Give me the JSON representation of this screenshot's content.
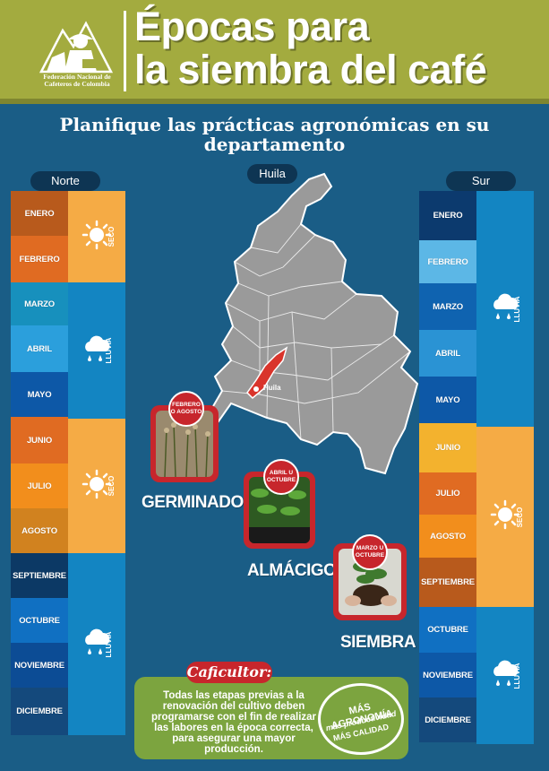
{
  "header": {
    "title_line1": "Épocas para",
    "title_line2": "la siembra del café",
    "logo_text": "Federación Nacional de Cafeteros de Colombia",
    "accent_color": "#a3ab3f"
  },
  "subtitle": "Planifique las prácticas agronómicas en su departamento",
  "department_pill": "Huila",
  "north": {
    "label": "Norte",
    "months": [
      {
        "name": "ENERO",
        "color": "#b85a1c"
      },
      {
        "name": "FEBRERO",
        "color": "#e06b22"
      },
      {
        "name": "MARZO",
        "color": "#1790bd"
      },
      {
        "name": "ABRIL",
        "color": "#2b9fdc"
      },
      {
        "name": "MAYO",
        "color": "#0d58a7"
      },
      {
        "name": "JUNIO",
        "color": "#e06b22"
      },
      {
        "name": "JULIO",
        "color": "#f28e1c"
      },
      {
        "name": "AGOSTO",
        "color": "#d1821f"
      },
      {
        "name": "SEPTIEMBRE",
        "color": "#0c3965"
      },
      {
        "name": "OCTUBRE",
        "color": "#1070c2"
      },
      {
        "name": "NOVIEMBRE",
        "color": "#0c4c95"
      },
      {
        "name": "DICIEMBRE",
        "color": "#14497c"
      }
    ],
    "seasons": [
      {
        "label": "SECO",
        "icon": "sun-icon"
      },
      {
        "label": "LLUVIA",
        "icon": "rain-cloud-icon"
      },
      {
        "label": "SECO",
        "icon": "sun-icon"
      },
      {
        "label": "LLUVIA",
        "icon": "rain-cloud-icon"
      }
    ]
  },
  "south": {
    "label": "Sur",
    "months": [
      {
        "name": "ENERO",
        "color": "#0c3a6e"
      },
      {
        "name": "FEBRERO",
        "color": "#5cb7e6"
      },
      {
        "name": "MARZO",
        "color": "#0f63b0"
      },
      {
        "name": "ABRIL",
        "color": "#2a93d4"
      },
      {
        "name": "MAYO",
        "color": "#0d58a7"
      },
      {
        "name": "JUNIO",
        "color": "#f3b22e"
      },
      {
        "name": "JULIO",
        "color": "#e06b22"
      },
      {
        "name": "AGOSTO",
        "color": "#f28e1c"
      },
      {
        "name": "SEPTIEMBRE",
        "color": "#b85a1c"
      },
      {
        "name": "OCTUBRE",
        "color": "#1070c2"
      },
      {
        "name": "NOVIEMBRE",
        "color": "#0d58a7"
      },
      {
        "name": "DICIEMBRE",
        "color": "#14497c"
      }
    ],
    "seasons": [
      {
        "label": "LLUVIA",
        "icon": "rain-cloud-icon"
      },
      {
        "label": "SECO",
        "icon": "sun-icon"
      },
      {
        "label": "LLUVIA",
        "icon": "rain-cloud-icon"
      }
    ]
  },
  "map": {
    "region_label": "Huila",
    "country_color": "#9a9a9a",
    "region_color": "#d9342b"
  },
  "stages": [
    {
      "name": "GERMINADOR",
      "badge": "FEBRERO O AGOSTO"
    },
    {
      "name": "ALMÁCIGO",
      "badge": "ABRIL U OCTUBRE"
    },
    {
      "name": "SIEMBRA",
      "badge": "MARZO U OCTUBRE"
    }
  ],
  "note": {
    "tag": "Caficultor:",
    "text": "Todas las etapas previas a la renovación del cultivo deben programarse con el fin de realizar las labores en la época correcta, para asegurar una mayor producción."
  },
  "seal": {
    "line1": "MÁS AGRONOMÍA",
    "line2": "más productividad",
    "line3": "MÁS CALIDAD"
  }
}
